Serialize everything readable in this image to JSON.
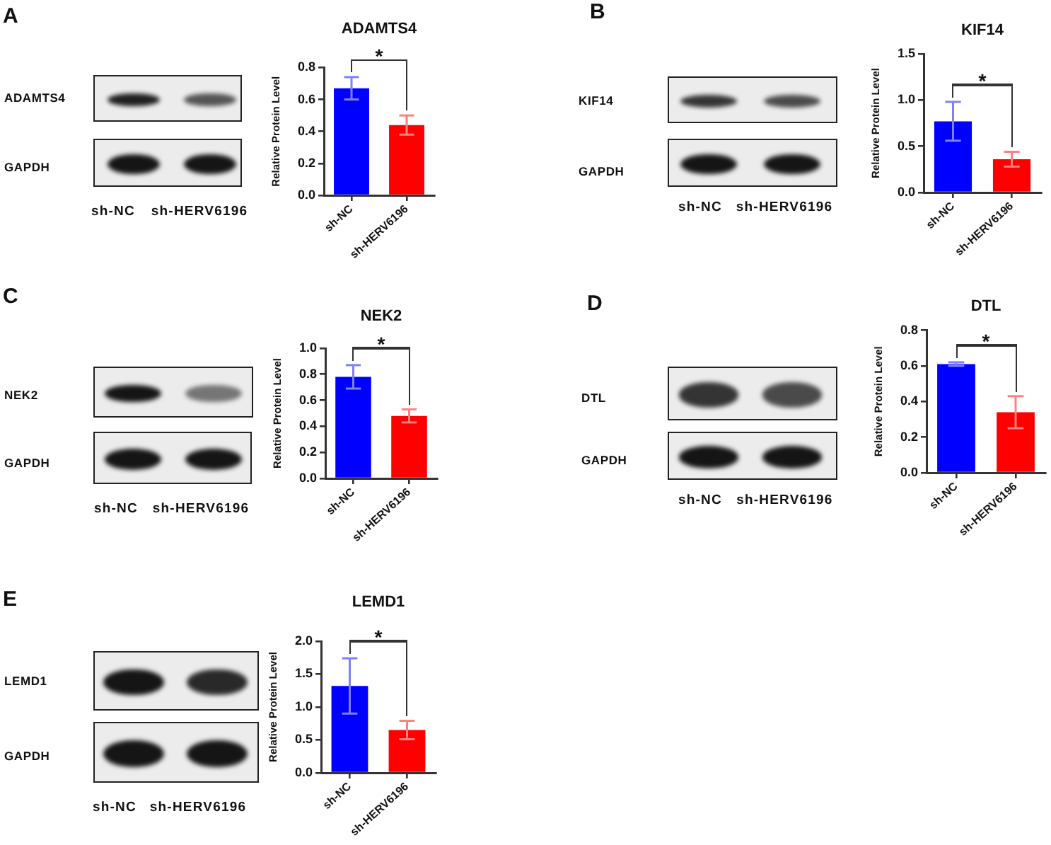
{
  "chart_data": [
    {
      "type": "bar",
      "title": "ADAMTS4",
      "ylabel": "Relative Protein Level",
      "categories": [
        "sh-NC",
        "sh-HERV6196"
      ],
      "values": [
        0.67,
        0.44
      ],
      "colors": [
        "#0000ff",
        "#ff0000"
      ],
      "errors": [
        0.07,
        0.06
      ],
      "ylim": [
        0,
        0.8
      ],
      "yticks": [
        {
          "value": 0,
          "label": "0.0"
        },
        0.2,
        0.4,
        0.6,
        0.8
      ],
      "grid": false,
      "legend": false,
      "annotations": [
        "A",
        "ADAMTS4",
        "GAPDH",
        "sh-NC",
        "sh-HERV6196",
        "*"
      ]
    },
    {
      "type": "bar",
      "title": "KIF14",
      "ylabel": "Relative Protein Level",
      "categories": [
        "sh-NC",
        "sh-HERV6196"
      ],
      "values": [
        0.77,
        0.36
      ],
      "colors": [
        "#0000ff",
        "#ff0000"
      ],
      "errors": [
        0.21,
        0.08
      ],
      "ylim": [
        0,
        1.5
      ],
      "yticks": [
        {
          "value": 0,
          "label": "0.0"
        },
        0.5,
        {
          "value": 1,
          "label": "1.0"
        },
        1.5
      ],
      "grid": false,
      "legend": false,
      "annotations": [
        "B",
        "KIF14",
        "GAPDH",
        "sh-NC",
        "sh-HERV6196",
        "*"
      ]
    },
    {
      "type": "bar",
      "title": "NEK2",
      "ylabel": "Relative Protein Level",
      "categories": [
        "sh-NC",
        "sh-HERV6196"
      ],
      "values": [
        0.78,
        0.48
      ],
      "colors": [
        "#0000ff",
        "#ff0000"
      ],
      "errors": [
        0.09,
        0.05
      ],
      "ylim": [
        0,
        1
      ],
      "yticks": [
        {
          "value": 0,
          "label": "0.0"
        },
        0.2,
        0.4,
        0.6,
        0.8,
        {
          "value": 1,
          "label": "1.0"
        }
      ],
      "grid": false,
      "legend": false,
      "annotations": [
        "C",
        "NEK2",
        "GAPDH",
        "sh-NC",
        "sh-HERV6196",
        "*"
      ]
    },
    {
      "type": "bar",
      "title": "DTL",
      "ylabel": "Relative Protein Level",
      "categories": [
        "sh-NC",
        "sh-HERV6196"
      ],
      "values": [
        0.61,
        0.34
      ],
      "colors": [
        "#0000ff",
        "#ff0000"
      ],
      "errors": [
        0.01,
        0.09
      ],
      "ylim": [
        0,
        0.8
      ],
      "yticks": [
        {
          "value": 0,
          "label": "0.0"
        },
        0.2,
        0.4,
        0.6,
        0.8
      ],
      "grid": false,
      "legend": false,
      "annotations": [
        "D",
        "DTL",
        "GAPDH",
        "sh-NC",
        "sh-HERV6196",
        "*"
      ]
    },
    {
      "type": "bar",
      "title": "LEMD1",
      "ylabel": "Relative Protein Level",
      "categories": [
        "sh-NC",
        "sh-HERV6196"
      ],
      "values": [
        1.32,
        0.65
      ],
      "colors": [
        "#0000ff",
        "#ff0000"
      ],
      "errors": [
        0.42,
        0.14
      ],
      "ylim": [
        0,
        2
      ],
      "yticks": [
        {
          "value": 0,
          "label": "0.0"
        },
        0.5,
        {
          "value": 1,
          "label": "1.0"
        },
        1.5,
        {
          "value": 2,
          "label": "2.0"
        }
      ],
      "grid": false,
      "legend": false,
      "annotations": [
        "E",
        "LEMD1",
        "GAPDH",
        "sh-NC",
        "sh-HERV6196",
        "*"
      ]
    }
  ]
}
